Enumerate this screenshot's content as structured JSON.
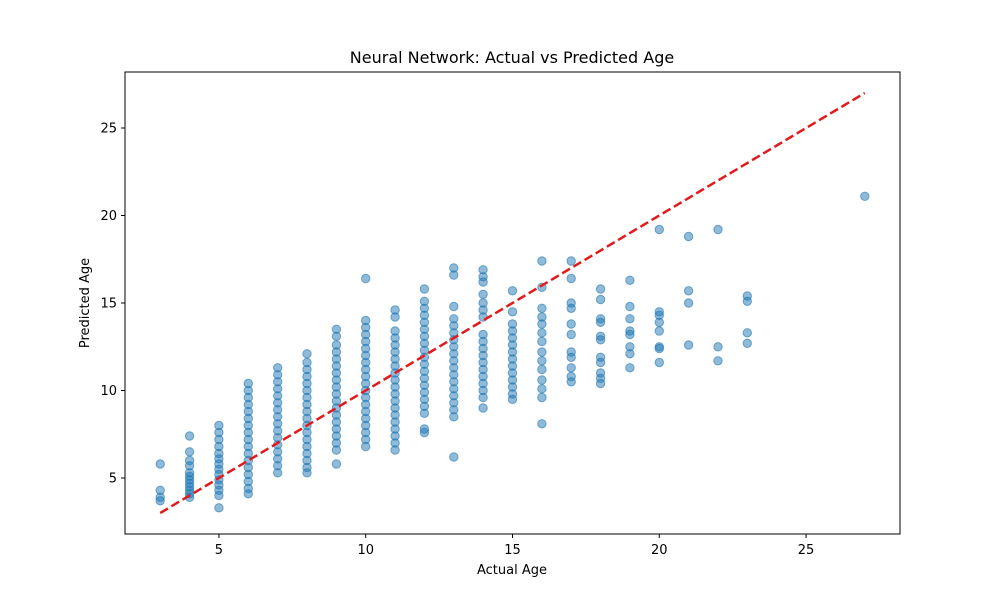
{
  "chart_data": {
    "type": "scatter",
    "title": "Neural Network: Actual vs Predicted Age",
    "xlabel": "Actual Age",
    "ylabel": "Predicted Age",
    "xlim": [
      1.8,
      28.2
    ],
    "ylim": [
      1.8,
      28.2
    ],
    "xticks": [
      5,
      10,
      15,
      20,
      25
    ],
    "yticks": [
      5,
      10,
      15,
      20,
      25
    ],
    "grid": false,
    "colors": {
      "points": "#1f77b4",
      "reference_line": "#e31a1c",
      "axes": "#000000"
    },
    "reference_line": {
      "style": "dashed",
      "from": [
        3,
        3
      ],
      "to": [
        27,
        27
      ]
    },
    "points": [
      [
        3,
        5.8
      ],
      [
        3,
        4.3
      ],
      [
        3,
        3.9
      ],
      [
        3,
        3.7
      ],
      [
        4,
        7.4
      ],
      [
        4,
        6.5
      ],
      [
        4,
        6.0
      ],
      [
        4,
        5.7
      ],
      [
        4,
        5.3
      ],
      [
        4,
        5.1
      ],
      [
        4,
        4.9
      ],
      [
        4,
        4.7
      ],
      [
        4,
        4.5
      ],
      [
        4,
        4.3
      ],
      [
        4,
        4.1
      ],
      [
        4,
        3.9
      ],
      [
        5,
        8.0
      ],
      [
        5,
        7.6
      ],
      [
        5,
        7.2
      ],
      [
        5,
        6.8
      ],
      [
        5,
        6.4
      ],
      [
        5,
        6.1
      ],
      [
        5,
        5.8
      ],
      [
        5,
        5.5
      ],
      [
        5,
        5.2
      ],
      [
        5,
        4.9
      ],
      [
        5,
        4.6
      ],
      [
        5,
        4.3
      ],
      [
        5,
        4.0
      ],
      [
        5,
        3.3
      ],
      [
        6,
        10.4
      ],
      [
        6,
        10.0
      ],
      [
        6,
        9.6
      ],
      [
        6,
        9.2
      ],
      [
        6,
        8.8
      ],
      [
        6,
        8.4
      ],
      [
        6,
        8.0
      ],
      [
        6,
        7.6
      ],
      [
        6,
        7.2
      ],
      [
        6,
        6.8
      ],
      [
        6,
        6.4
      ],
      [
        6,
        6.0
      ],
      [
        6,
        5.6
      ],
      [
        6,
        5.2
      ],
      [
        6,
        4.8
      ],
      [
        6,
        4.4
      ],
      [
        6,
        4.1
      ],
      [
        7,
        11.3
      ],
      [
        7,
        10.9
      ],
      [
        7,
        10.5
      ],
      [
        7,
        10.1
      ],
      [
        7,
        9.7
      ],
      [
        7,
        9.3
      ],
      [
        7,
        8.9
      ],
      [
        7,
        8.5
      ],
      [
        7,
        8.1
      ],
      [
        7,
        7.7
      ],
      [
        7,
        7.3
      ],
      [
        7,
        6.9
      ],
      [
        7,
        6.5
      ],
      [
        7,
        6.1
      ],
      [
        7,
        5.7
      ],
      [
        7,
        5.3
      ],
      [
        8,
        12.1
      ],
      [
        8,
        11.6
      ],
      [
        8,
        11.2
      ],
      [
        8,
        10.8
      ],
      [
        8,
        10.4
      ],
      [
        8,
        10.0
      ],
      [
        8,
        9.6
      ],
      [
        8,
        9.2
      ],
      [
        8,
        8.8
      ],
      [
        8,
        8.4
      ],
      [
        8,
        8.0
      ],
      [
        8,
        7.6
      ],
      [
        8,
        7.2
      ],
      [
        8,
        6.8
      ],
      [
        8,
        6.4
      ],
      [
        8,
        6.0
      ],
      [
        8,
        5.6
      ],
      [
        8,
        5.3
      ],
      [
        9,
        13.5
      ],
      [
        9,
        13.1
      ],
      [
        9,
        12.6
      ],
      [
        9,
        12.2
      ],
      [
        9,
        11.8
      ],
      [
        9,
        11.4
      ],
      [
        9,
        11.0
      ],
      [
        9,
        10.6
      ],
      [
        9,
        10.2
      ],
      [
        9,
        9.8
      ],
      [
        9,
        9.4
      ],
      [
        9,
        9.0
      ],
      [
        9,
        8.6
      ],
      [
        9,
        8.2
      ],
      [
        9,
        7.8
      ],
      [
        9,
        7.4
      ],
      [
        9,
        7.0
      ],
      [
        9,
        6.6
      ],
      [
        9,
        5.8
      ],
      [
        10,
        16.4
      ],
      [
        10,
        14.0
      ],
      [
        10,
        13.6
      ],
      [
        10,
        13.2
      ],
      [
        10,
        12.8
      ],
      [
        10,
        12.4
      ],
      [
        10,
        12.0
      ],
      [
        10,
        11.6
      ],
      [
        10,
        11.2
      ],
      [
        10,
        10.8
      ],
      [
        10,
        10.4
      ],
      [
        10,
        10.0
      ],
      [
        10,
        9.6
      ],
      [
        10,
        9.2
      ],
      [
        10,
        8.8
      ],
      [
        10,
        8.4
      ],
      [
        10,
        8.0
      ],
      [
        10,
        7.6
      ],
      [
        10,
        7.2
      ],
      [
        10,
        6.8
      ],
      [
        11,
        14.6
      ],
      [
        11,
        14.2
      ],
      [
        11,
        13.4
      ],
      [
        11,
        13.0
      ],
      [
        11,
        12.6
      ],
      [
        11,
        12.2
      ],
      [
        11,
        11.8
      ],
      [
        11,
        11.4
      ],
      [
        11,
        11.0
      ],
      [
        11,
        10.6
      ],
      [
        11,
        10.2
      ],
      [
        11,
        9.8
      ],
      [
        11,
        9.4
      ],
      [
        11,
        9.0
      ],
      [
        11,
        8.6
      ],
      [
        11,
        8.2
      ],
      [
        11,
        7.8
      ],
      [
        11,
        7.4
      ],
      [
        11,
        7.0
      ],
      [
        11,
        6.6
      ],
      [
        12,
        15.8
      ],
      [
        12,
        15.1
      ],
      [
        12,
        14.7
      ],
      [
        12,
        14.3
      ],
      [
        12,
        13.9
      ],
      [
        12,
        13.5
      ],
      [
        12,
        13.1
      ],
      [
        12,
        12.7
      ],
      [
        12,
        12.3
      ],
      [
        12,
        11.9
      ],
      [
        12,
        11.5
      ],
      [
        12,
        11.1
      ],
      [
        12,
        10.7
      ],
      [
        12,
        10.3
      ],
      [
        12,
        9.9
      ],
      [
        12,
        9.5
      ],
      [
        12,
        9.1
      ],
      [
        12,
        8.7
      ],
      [
        12,
        7.8
      ],
      [
        12,
        7.6
      ],
      [
        13,
        17.0
      ],
      [
        13,
        16.6
      ],
      [
        13,
        14.8
      ],
      [
        13,
        14.1
      ],
      [
        13,
        13.7
      ],
      [
        13,
        13.3
      ],
      [
        13,
        12.9
      ],
      [
        13,
        12.5
      ],
      [
        13,
        12.1
      ],
      [
        13,
        11.7
      ],
      [
        13,
        11.3
      ],
      [
        13,
        10.9
      ],
      [
        13,
        10.5
      ],
      [
        13,
        10.1
      ],
      [
        13,
        9.7
      ],
      [
        13,
        9.3
      ],
      [
        13,
        8.9
      ],
      [
        13,
        8.5
      ],
      [
        13,
        6.2
      ],
      [
        14,
        16.9
      ],
      [
        14,
        16.5
      ],
      [
        14,
        16.2
      ],
      [
        14,
        15.5
      ],
      [
        14,
        15.0
      ],
      [
        14,
        14.6
      ],
      [
        14,
        14.2
      ],
      [
        14,
        13.2
      ],
      [
        14,
        12.8
      ],
      [
        14,
        12.4
      ],
      [
        14,
        12.0
      ],
      [
        14,
        11.6
      ],
      [
        14,
        11.2
      ],
      [
        14,
        10.8
      ],
      [
        14,
        10.4
      ],
      [
        14,
        10.0
      ],
      [
        14,
        9.6
      ],
      [
        14,
        9.0
      ],
      [
        15,
        15.7
      ],
      [
        15,
        14.5
      ],
      [
        15,
        13.8
      ],
      [
        15,
        13.4
      ],
      [
        15,
        13.0
      ],
      [
        15,
        12.6
      ],
      [
        15,
        12.2
      ],
      [
        15,
        11.8
      ],
      [
        15,
        11.4
      ],
      [
        15,
        11.0
      ],
      [
        15,
        10.6
      ],
      [
        15,
        10.2
      ],
      [
        15,
        9.8
      ],
      [
        15,
        9.5
      ],
      [
        16,
        17.4
      ],
      [
        16,
        15.9
      ],
      [
        16,
        14.7
      ],
      [
        16,
        14.2
      ],
      [
        16,
        13.8
      ],
      [
        16,
        13.3
      ],
      [
        16,
        12.8
      ],
      [
        16,
        12.2
      ],
      [
        16,
        11.7
      ],
      [
        16,
        11.2
      ],
      [
        16,
        10.6
      ],
      [
        16,
        10.1
      ],
      [
        16,
        9.6
      ],
      [
        16,
        8.1
      ],
      [
        17,
        17.4
      ],
      [
        17,
        16.4
      ],
      [
        17,
        15.0
      ],
      [
        17,
        14.7
      ],
      [
        17,
        13.8
      ],
      [
        17,
        13.2
      ],
      [
        17,
        12.2
      ],
      [
        17,
        11.9
      ],
      [
        17,
        11.3
      ],
      [
        17,
        10.8
      ],
      [
        17,
        10.5
      ],
      [
        18,
        15.8
      ],
      [
        18,
        15.2
      ],
      [
        18,
        14.1
      ],
      [
        18,
        13.9
      ],
      [
        18,
        13.1
      ],
      [
        18,
        12.9
      ],
      [
        18,
        11.9
      ],
      [
        18,
        11.6
      ],
      [
        18,
        11.0
      ],
      [
        18,
        10.7
      ],
      [
        18,
        10.4
      ],
      [
        19,
        16.3
      ],
      [
        19,
        14.8
      ],
      [
        19,
        14.1
      ],
      [
        19,
        13.4
      ],
      [
        19,
        13.2
      ],
      [
        19,
        12.5
      ],
      [
        19,
        12.1
      ],
      [
        19,
        11.3
      ],
      [
        20,
        19.2
      ],
      [
        20,
        14.5
      ],
      [
        20,
        14.3
      ],
      [
        20,
        13.9
      ],
      [
        20,
        13.4
      ],
      [
        20,
        12.5
      ],
      [
        20,
        12.4
      ],
      [
        20,
        11.6
      ],
      [
        21,
        18.8
      ],
      [
        21,
        15.7
      ],
      [
        21,
        15.0
      ],
      [
        21,
        12.6
      ],
      [
        22,
        19.2
      ],
      [
        22,
        12.5
      ],
      [
        22,
        11.7
      ],
      [
        23,
        15.4
      ],
      [
        23,
        15.1
      ],
      [
        23,
        13.3
      ],
      [
        23,
        12.7
      ],
      [
        27,
        21.1
      ]
    ]
  }
}
